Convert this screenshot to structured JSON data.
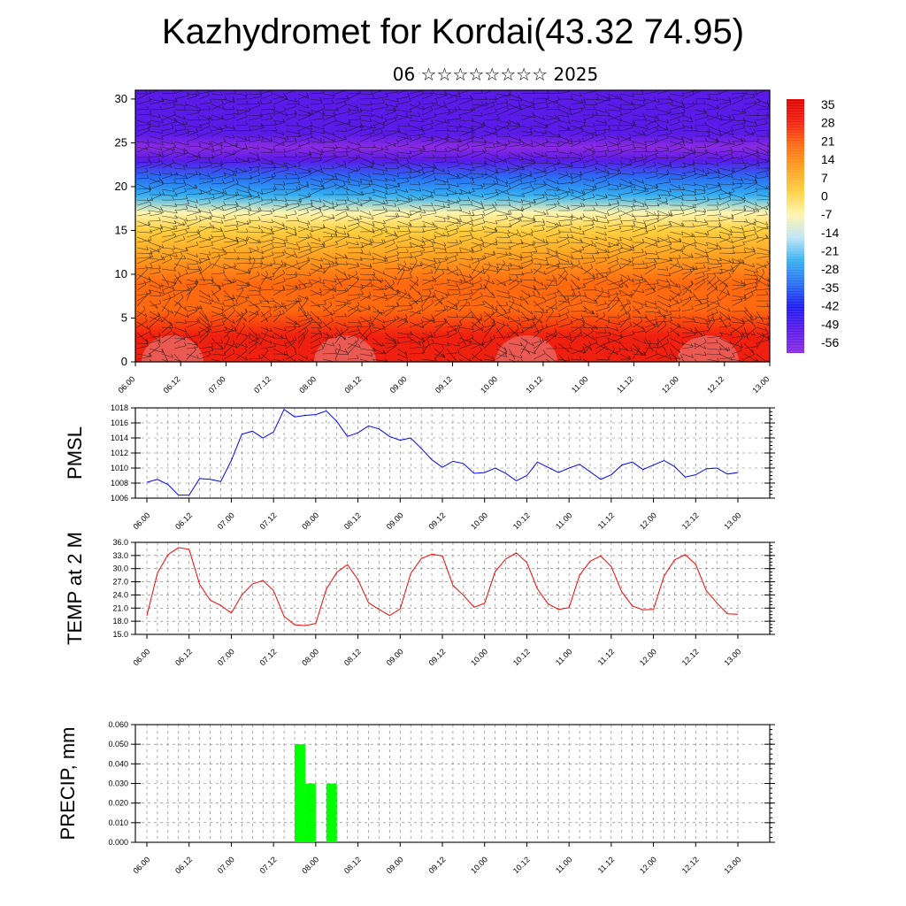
{
  "header": {
    "title": "Kazhydromet for Kordai(43.32 74.95)",
    "subtitle": "06 ☆☆☆☆☆☆☆☆ 2025"
  },
  "time_labels": [
    "06.00",
    "06.12",
    "07.00",
    "07.12",
    "08.00",
    "08.12",
    "09.00",
    "09.12",
    "10.00",
    "10.12",
    "11.00",
    "11.12",
    "12.00",
    "12.12",
    "13.00"
  ],
  "chart_data": [
    {
      "type": "heatmap",
      "name_hint": "temperature cross-section with wind barbs",
      "x": [
        "06.00",
        "06.12",
        "07.00",
        "07.12",
        "08.00",
        "08.12",
        "09.00",
        "09.12",
        "10.00",
        "10.12",
        "11.00",
        "11.12",
        "12.00",
        "12.12",
        "13.00"
      ],
      "yticks": [
        0,
        5,
        10,
        15,
        20,
        25,
        30
      ],
      "ylim": [
        0,
        31
      ],
      "colorbar_labels": [
        "35",
        "28",
        "21",
        "14",
        "7",
        "0",
        "-7",
        "-14",
        "-21",
        "-28",
        "-35",
        "-42",
        "-49",
        "-56"
      ],
      "colorbar_range": [
        -63,
        42
      ],
      "profile": [
        {
          "level": 0,
          "value": 30
        },
        {
          "level": 3,
          "value": 29
        },
        {
          "level": 6,
          "value": 25
        },
        {
          "level": 9,
          "value": 19
        },
        {
          "level": 12,
          "value": 10
        },
        {
          "level": 15,
          "value": 1
        },
        {
          "level": 17,
          "value": -10
        },
        {
          "level": 19,
          "value": -22
        },
        {
          "level": 21,
          "value": -36
        },
        {
          "level": 23,
          "value": -50
        },
        {
          "level": 24.5,
          "value": -60
        },
        {
          "level": 26,
          "value": -58
        },
        {
          "level": 28,
          "value": -55
        },
        {
          "level": 31,
          "value": -52
        }
      ],
      "colors": {
        "ramp": [
          "#8a2be2",
          "#5a1ae8",
          "#1a1aee",
          "#2a6ef2",
          "#35b0f2",
          "#bfe4f5",
          "#fff5b0",
          "#ffd040",
          "#ffa020",
          "#ff6a10",
          "#f02010",
          "#e00000"
        ]
      }
    },
    {
      "type": "line",
      "ylabel": "PMSL",
      "ylim": [
        1006,
        1018
      ],
      "yticks": [
        "1006",
        "1008",
        "1010",
        "1012",
        "1014",
        "1016",
        "1018"
      ],
      "series": [
        {
          "values": [
            1008.1,
            1008.5,
            1007.8,
            1006.4,
            1006.4,
            1008.6,
            1008.5,
            1008.2,
            1011.0,
            1014.5,
            1014.9,
            1014.0,
            1014.8,
            1017.8,
            1016.8,
            1017.0,
            1017.1,
            1017.6,
            1016.2,
            1014.2,
            1014.7,
            1015.6,
            1015.2,
            1014.2,
            1013.7,
            1014.0,
            1012.6,
            1011.1,
            1010.1,
            1010.9,
            1010.6,
            1009.3,
            1009.4,
            1010.0,
            1009.3,
            1008.3,
            1009.0,
            1010.8,
            1010.1,
            1009.4,
            1010.0,
            1010.5,
            1009.5,
            1008.5,
            1009.1,
            1010.4,
            1010.8,
            1009.8,
            1010.4,
            1011.0,
            1010.2,
            1008.8,
            1009.1,
            1009.9,
            1010.0,
            1009.2,
            1009.4
          ]
        }
      ],
      "colors": {
        "line": "#0000ff"
      }
    },
    {
      "type": "line",
      "ylabel": "TEMP at 2 M",
      "ylim": [
        15.0,
        36.0
      ],
      "yticks": [
        "15.0",
        "18.0",
        "21.0",
        "24.0",
        "27.0",
        "30.0",
        "33.0",
        "36.0"
      ],
      "series": [
        {
          "values": [
            19.3,
            29.0,
            33.2,
            34.8,
            34.4,
            26.4,
            22.8,
            21.6,
            19.9,
            24.0,
            26.5,
            27.3,
            25.0,
            19.1,
            17.2,
            17.0,
            17.5,
            25.3,
            29.2,
            30.9,
            27.5,
            22.2,
            20.7,
            19.3,
            20.8,
            28.9,
            32.3,
            33.3,
            32.9,
            26.2,
            23.9,
            21.2,
            22.1,
            29.3,
            32.2,
            33.6,
            31.4,
            25.4,
            22.0,
            20.7,
            21.1,
            28.5,
            31.7,
            32.9,
            30.5,
            24.7,
            21.5,
            20.6,
            20.7,
            28.3,
            32.0,
            33.2,
            31.0,
            25.0,
            22.2,
            19.7,
            19.6
          ]
        }
      ],
      "colors": {
        "line": "#ff0000"
      }
    },
    {
      "type": "bar",
      "ylabel": "PRECIP, mm",
      "ylim": [
        0.0,
        0.06
      ],
      "yticks": [
        "0.000",
        "0.010",
        "0.020",
        "0.030",
        "0.040",
        "0.050",
        "0.060"
      ],
      "bars": [
        {
          "start": 14,
          "end": 15,
          "value": 0.05
        },
        {
          "start": 15,
          "end": 16,
          "value": 0.03
        },
        {
          "start": 17,
          "end": 18,
          "value": 0.03
        }
      ],
      "colors": {
        "bar": "#00ff00"
      }
    }
  ]
}
